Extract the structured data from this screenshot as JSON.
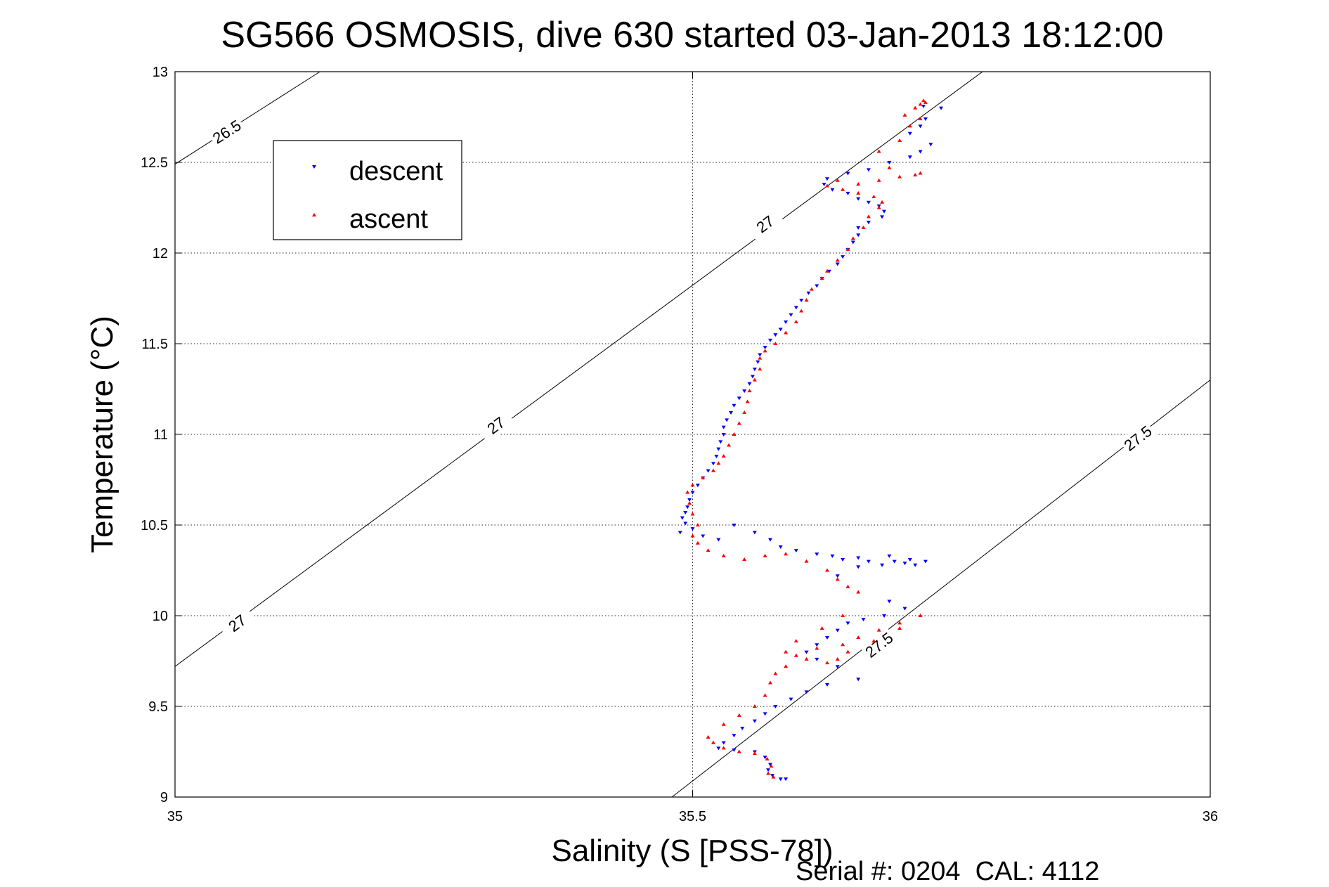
{
  "chart_data": {
    "type": "scatter",
    "title": "SG566 OSMOSIS, dive 630 started 03-Jan-2013 18:12:00",
    "xlabel": "Salinity (S [PSS-78])",
    "ylabel": "Temperature (°C)",
    "xlim": [
      35,
      36
    ],
    "ylim": [
      9,
      13
    ],
    "x_ticks": [
      "35",
      "35.5",
      "36"
    ],
    "y_ticks": [
      "9",
      "9.5",
      "10",
      "10.5",
      "11",
      "11.5",
      "12",
      "12.5",
      "13"
    ],
    "grid": true,
    "legend_position": "top-left",
    "footer": "Serial #: 0204  CAL: 4112",
    "isopycnals": [
      {
        "label": "26.5",
        "points": [
          [
            35.0,
            12.49
          ],
          [
            35.14,
            13.0
          ]
        ],
        "label_at": [
          35.05,
          12.67
        ]
      },
      {
        "label": "27",
        "points": [
          [
            35.0,
            9.72
          ],
          [
            35.78,
            13.0
          ]
        ],
        "label_at": [
          [
            35.06,
            9.96
          ],
          [
            35.31,
            11.05
          ],
          [
            35.57,
            12.16
          ]
        ]
      },
      {
        "label": "27.5",
        "points": [
          [
            35.48,
            9.0
          ],
          [
            36.0,
            11.3
          ]
        ],
        "label_at": [
          [
            35.68,
            9.84
          ],
          [
            35.93,
            10.98
          ]
        ]
      }
    ],
    "series": [
      {
        "name": "descent",
        "color": "#0000ff",
        "marker": "triangle-down",
        "points": [
          [
            35.723,
            12.81
          ],
          [
            35.74,
            12.8
          ],
          [
            35.725,
            12.74
          ],
          [
            35.72,
            12.7
          ],
          [
            35.71,
            12.66
          ],
          [
            35.73,
            12.6
          ],
          [
            35.72,
            12.56
          ],
          [
            35.71,
            12.53
          ],
          [
            35.69,
            12.5
          ],
          [
            35.67,
            12.46
          ],
          [
            35.65,
            12.44
          ],
          [
            35.63,
            12.41
          ],
          [
            35.627,
            12.38
          ],
          [
            35.635,
            12.35
          ],
          [
            35.65,
            12.33
          ],
          [
            35.66,
            12.3
          ],
          [
            35.67,
            12.28
          ],
          [
            35.68,
            12.26
          ],
          [
            35.685,
            12.23
          ],
          [
            35.683,
            12.2
          ],
          [
            35.67,
            12.17
          ],
          [
            35.66,
            12.14
          ],
          [
            35.66,
            12.1
          ],
          [
            35.655,
            12.06
          ],
          [
            35.65,
            12.02
          ],
          [
            35.645,
            11.98
          ],
          [
            35.64,
            11.94
          ],
          [
            35.632,
            11.9
          ],
          [
            35.625,
            11.86
          ],
          [
            35.62,
            11.82
          ],
          [
            35.612,
            11.78
          ],
          [
            35.605,
            11.74
          ],
          [
            35.6,
            11.7
          ],
          [
            35.595,
            11.66
          ],
          [
            35.59,
            11.62
          ],
          [
            35.585,
            11.58
          ],
          [
            35.58,
            11.55
          ],
          [
            35.575,
            11.52
          ],
          [
            35.57,
            11.48
          ],
          [
            35.565,
            11.44
          ],
          [
            35.563,
            11.4
          ],
          [
            35.56,
            11.36
          ],
          [
            35.558,
            11.32
          ],
          [
            35.555,
            11.28
          ],
          [
            35.55,
            11.24
          ],
          [
            35.545,
            11.2
          ],
          [
            35.54,
            11.16
          ],
          [
            35.537,
            11.12
          ],
          [
            35.533,
            11.08
          ],
          [
            35.53,
            11.04
          ],
          [
            35.53,
            11.0
          ],
          [
            35.527,
            10.96
          ],
          [
            35.525,
            10.92
          ],
          [
            35.523,
            10.88
          ],
          [
            35.52,
            10.84
          ],
          [
            35.515,
            10.8
          ],
          [
            35.51,
            10.76
          ],
          [
            35.505,
            10.72
          ],
          [
            35.5,
            10.68
          ],
          [
            35.497,
            10.64
          ],
          [
            35.495,
            10.6
          ],
          [
            35.493,
            10.57
          ],
          [
            35.49,
            10.54
          ],
          [
            35.493,
            10.51
          ],
          [
            35.5,
            10.48
          ],
          [
            35.488,
            10.46
          ],
          [
            35.51,
            10.44
          ],
          [
            35.525,
            10.42
          ],
          [
            35.54,
            10.5
          ],
          [
            35.56,
            10.46
          ],
          [
            35.575,
            10.42
          ],
          [
            35.585,
            10.38
          ],
          [
            35.6,
            10.36
          ],
          [
            35.62,
            10.34
          ],
          [
            35.635,
            10.33
          ],
          [
            35.645,
            10.31
          ],
          [
            35.66,
            10.32
          ],
          [
            35.67,
            10.3
          ],
          [
            35.683,
            10.28
          ],
          [
            35.695,
            10.3
          ],
          [
            35.705,
            10.29
          ],
          [
            35.715,
            10.28
          ],
          [
            35.725,
            10.3
          ],
          [
            35.71,
            10.31
          ],
          [
            35.69,
            10.33
          ],
          [
            35.66,
            10.27
          ],
          [
            35.64,
            10.22
          ],
          [
            35.69,
            10.08
          ],
          [
            35.705,
            10.04
          ],
          [
            35.685,
            10.0
          ],
          [
            35.665,
            9.98
          ],
          [
            35.65,
            9.96
          ],
          [
            35.64,
            9.92
          ],
          [
            35.63,
            9.88
          ],
          [
            35.62,
            9.84
          ],
          [
            35.61,
            9.8
          ],
          [
            35.62,
            9.76
          ],
          [
            35.64,
            9.72
          ],
          [
            35.66,
            9.65
          ],
          [
            35.63,
            9.62
          ],
          [
            35.61,
            9.58
          ],
          [
            35.595,
            9.54
          ],
          [
            35.58,
            9.5
          ],
          [
            35.57,
            9.46
          ],
          [
            35.56,
            9.42
          ],
          [
            35.548,
            9.38
          ],
          [
            35.54,
            9.34
          ],
          [
            35.53,
            9.3
          ],
          [
            35.525,
            9.27
          ],
          [
            35.54,
            9.26
          ],
          [
            35.56,
            9.25
          ],
          [
            35.57,
            9.22
          ],
          [
            35.575,
            9.18
          ],
          [
            35.573,
            9.15
          ],
          [
            35.577,
            9.12
          ],
          [
            35.585,
            9.1
          ],
          [
            35.59,
            9.1
          ]
        ]
      },
      {
        "name": "ascent",
        "color": "#ff0000",
        "marker": "triangle-up",
        "points": [
          [
            35.578,
            9.11
          ],
          [
            35.573,
            9.13
          ],
          [
            35.576,
            9.17
          ],
          [
            35.572,
            9.21
          ],
          [
            35.56,
            9.24
          ],
          [
            35.545,
            9.25
          ],
          [
            35.53,
            9.27
          ],
          [
            35.52,
            9.3
          ],
          [
            35.515,
            9.33
          ],
          [
            35.53,
            9.4
          ],
          [
            35.545,
            9.45
          ],
          [
            35.56,
            9.5
          ],
          [
            35.57,
            9.56
          ],
          [
            35.575,
            9.63
          ],
          [
            35.58,
            9.68
          ],
          [
            35.59,
            9.72
          ],
          [
            35.6,
            9.78
          ],
          [
            35.62,
            9.82
          ],
          [
            35.645,
            9.84
          ],
          [
            35.66,
            9.88
          ],
          [
            35.68,
            9.92
          ],
          [
            35.7,
            9.96
          ],
          [
            35.72,
            10.0
          ],
          [
            35.7,
            9.93
          ],
          [
            35.675,
            9.86
          ],
          [
            35.65,
            9.8
          ],
          [
            35.64,
            9.76
          ],
          [
            35.63,
            9.74
          ],
          [
            35.61,
            9.76
          ],
          [
            35.59,
            9.8
          ],
          [
            35.6,
            9.86
          ],
          [
            35.625,
            9.93
          ],
          [
            35.645,
            10.0
          ],
          [
            35.66,
            10.13
          ],
          [
            35.65,
            10.16
          ],
          [
            35.64,
            10.2
          ],
          [
            35.63,
            10.25
          ],
          [
            35.61,
            10.3
          ],
          [
            35.59,
            10.34
          ],
          [
            35.57,
            10.33
          ],
          [
            35.55,
            10.31
          ],
          [
            35.53,
            10.33
          ],
          [
            35.515,
            10.36
          ],
          [
            35.505,
            10.4
          ],
          [
            35.5,
            10.44
          ],
          [
            35.505,
            10.5
          ],
          [
            35.5,
            10.56
          ],
          [
            35.497,
            10.62
          ],
          [
            35.495,
            10.68
          ],
          [
            35.5,
            10.72
          ],
          [
            35.51,
            10.76
          ],
          [
            35.52,
            10.8
          ],
          [
            35.525,
            10.84
          ],
          [
            35.53,
            10.88
          ],
          [
            35.535,
            10.94
          ],
          [
            35.54,
            11.0
          ],
          [
            35.545,
            11.06
          ],
          [
            35.55,
            11.12
          ],
          [
            35.553,
            11.18
          ],
          [
            35.555,
            11.24
          ],
          [
            35.56,
            11.3
          ],
          [
            35.565,
            11.36
          ],
          [
            35.565,
            11.42
          ],
          [
            35.57,
            11.46
          ],
          [
            35.58,
            11.5
          ],
          [
            35.59,
            11.56
          ],
          [
            35.6,
            11.62
          ],
          [
            35.605,
            11.68
          ],
          [
            35.61,
            11.74
          ],
          [
            35.615,
            11.8
          ],
          [
            35.625,
            11.86
          ],
          [
            35.63,
            11.9
          ],
          [
            35.64,
            11.96
          ],
          [
            35.65,
            12.02
          ],
          [
            35.655,
            12.08
          ],
          [
            35.665,
            12.14
          ],
          [
            35.67,
            12.2
          ],
          [
            35.68,
            12.25
          ],
          [
            35.683,
            12.28
          ],
          [
            35.675,
            12.31
          ],
          [
            35.66,
            12.33
          ],
          [
            35.645,
            12.35
          ],
          [
            35.63,
            12.37
          ],
          [
            35.64,
            12.4
          ],
          [
            35.66,
            12.38
          ],
          [
            35.68,
            12.4
          ],
          [
            35.7,
            12.42
          ],
          [
            35.715,
            12.43
          ],
          [
            35.72,
            12.44
          ],
          [
            35.69,
            12.47
          ],
          [
            35.68,
            12.56
          ],
          [
            35.7,
            12.62
          ],
          [
            35.71,
            12.7
          ],
          [
            35.72,
            12.74
          ],
          [
            35.705,
            12.76
          ],
          [
            35.715,
            12.8
          ],
          [
            35.72,
            12.82
          ],
          [
            35.723,
            12.84
          ],
          [
            35.725,
            12.83
          ]
        ]
      }
    ]
  }
}
